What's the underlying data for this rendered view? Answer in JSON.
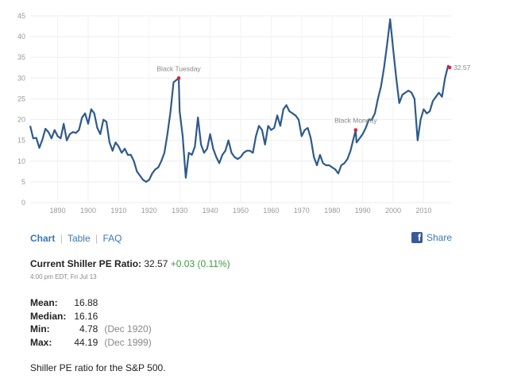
{
  "chart_data": {
    "type": "line",
    "title": "",
    "xlabel": "",
    "ylabel": "",
    "xlim": [
      1881,
      2019
    ],
    "ylim": [
      0,
      45
    ],
    "y_ticks": [
      0,
      5,
      10,
      15,
      20,
      25,
      30,
      35,
      40,
      45
    ],
    "x_ticks": [
      1890,
      1900,
      1910,
      1920,
      1930,
      1940,
      1950,
      1960,
      1970,
      1980,
      1990,
      2000,
      2010
    ],
    "grid": true,
    "line_color": "#2e5a8c",
    "marker_color": "#d9263a",
    "series": [
      {
        "x": [
          1881,
          1882,
          1883,
          1884,
          1885,
          1886,
          1887,
          1888,
          1889,
          1890,
          1891,
          1892,
          1893,
          1894,
          1895,
          1896,
          1897,
          1898,
          1899,
          1900,
          1901,
          1902,
          1903,
          1904,
          1905,
          1906,
          1907,
          1908,
          1909,
          1910,
          1911,
          1912,
          1913,
          1914,
          1915,
          1916,
          1917,
          1918,
          1919,
          1920,
          1921,
          1922,
          1923,
          1924,
          1925,
          1926,
          1927,
          1928,
          1929.7,
          1930,
          1931,
          1932,
          1933,
          1934,
          1935,
          1936,
          1937,
          1938,
          1939,
          1940,
          1941,
          1942,
          1943,
          1944,
          1945,
          1946,
          1947,
          1948,
          1949,
          1950,
          1951,
          1952,
          1953,
          1954,
          1955,
          1956,
          1957,
          1958,
          1959,
          1960,
          1961,
          1962,
          1963,
          1964,
          1965,
          1966,
          1967,
          1968,
          1969,
          1970,
          1971,
          1972,
          1973,
          1974,
          1975,
          1976,
          1977,
          1978,
          1979,
          1980,
          1981,
          1982,
          1983,
          1984,
          1985,
          1986,
          1987.7,
          1988,
          1989,
          1990,
          1991,
          1992,
          1993,
          1994,
          1995,
          1996,
          1997,
          1998,
          1999,
          2000,
          2001,
          2002,
          2003,
          2004,
          2005,
          2006,
          2007,
          2008,
          2009,
          2010,
          2011,
          2012,
          2013,
          2014,
          2015,
          2016,
          2017,
          2018,
          2018.5
        ],
        "values": [
          18.5,
          15.5,
          15.6,
          13.2,
          15.2,
          17.8,
          17.0,
          15.5,
          17.5,
          16.0,
          15.5,
          19.0,
          15.0,
          16.5,
          17.0,
          16.8,
          17.5,
          20.5,
          21.5,
          19.0,
          22.5,
          21.5,
          18.0,
          16.5,
          20.0,
          19.5,
          14.5,
          12.5,
          14.5,
          13.5,
          12.0,
          13.0,
          11.5,
          11.5,
          10.0,
          7.5,
          6.5,
          5.5,
          5.0,
          5.5,
          7.0,
          8.0,
          8.5,
          10.0,
          12.0,
          16.5,
          22.0,
          29.0,
          30.0,
          22.0,
          16.0,
          6.0,
          12.0,
          11.5,
          13.5,
          20.5,
          14.0,
          12.0,
          13.0,
          16.5,
          13.0,
          11.0,
          9.5,
          11.5,
          12.5,
          15.0,
          12.0,
          11.0,
          10.5,
          11.0,
          12.0,
          12.5,
          12.5,
          12.0,
          16.0,
          18.5,
          17.5,
          14.0,
          18.5,
          17.5,
          18.0,
          21.0,
          18.5,
          22.5,
          23.5,
          22.0,
          21.5,
          21.0,
          20.0,
          16.0,
          17.5,
          18.0,
          15.5,
          11.0,
          9.0,
          11.5,
          9.5,
          9.0,
          9.0,
          8.5,
          8.0,
          7.0,
          9.0,
          9.5,
          10.5,
          12.5,
          17.5,
          14.5,
          15.5,
          16.5,
          18.0,
          20.0,
          20.0,
          21.5,
          25.0,
          28.0,
          32.5,
          38.0,
          44.2,
          37.0,
          30.0,
          24.0,
          26.0,
          26.5,
          27.0,
          26.5,
          25.0,
          15.0,
          20.0,
          22.5,
          21.5,
          22.0,
          24.5,
          25.5,
          26.5,
          25.5,
          30.0,
          33.0,
          32.57
        ]
      }
    ],
    "annotations": [
      {
        "text": "Black Tuesday",
        "x": 1929.7,
        "y": 30.0
      },
      {
        "text": "Black Monday",
        "x": 1987.7,
        "y": 17.5
      },
      {
        "text": "32.57",
        "x": 2018.5,
        "y": 32.57
      }
    ]
  },
  "nav": {
    "chart": "Chart",
    "table": "Table",
    "faq": "FAQ",
    "sep": "|"
  },
  "share": {
    "label": "Share",
    "icon": "facebook-icon",
    "icon_glyph": "f"
  },
  "current": {
    "label": "Current Shiller PE Ratio:",
    "value": "32.57",
    "change": "+0.03 (0.11%)",
    "timestamp": "4:00 pm EDT, Fri Jul 13"
  },
  "stats": [
    {
      "key": "Mean:",
      "value": "16.88",
      "date": ""
    },
    {
      "key": "Median:",
      "value": "16.16",
      "date": ""
    },
    {
      "key": "Min:",
      "value": "4.78",
      "date": "(Dec 1920)"
    },
    {
      "key": "Max:",
      "value": "44.19",
      "date": "(Dec 1999)"
    }
  ],
  "description": "Shiller PE ratio for the S&P 500."
}
